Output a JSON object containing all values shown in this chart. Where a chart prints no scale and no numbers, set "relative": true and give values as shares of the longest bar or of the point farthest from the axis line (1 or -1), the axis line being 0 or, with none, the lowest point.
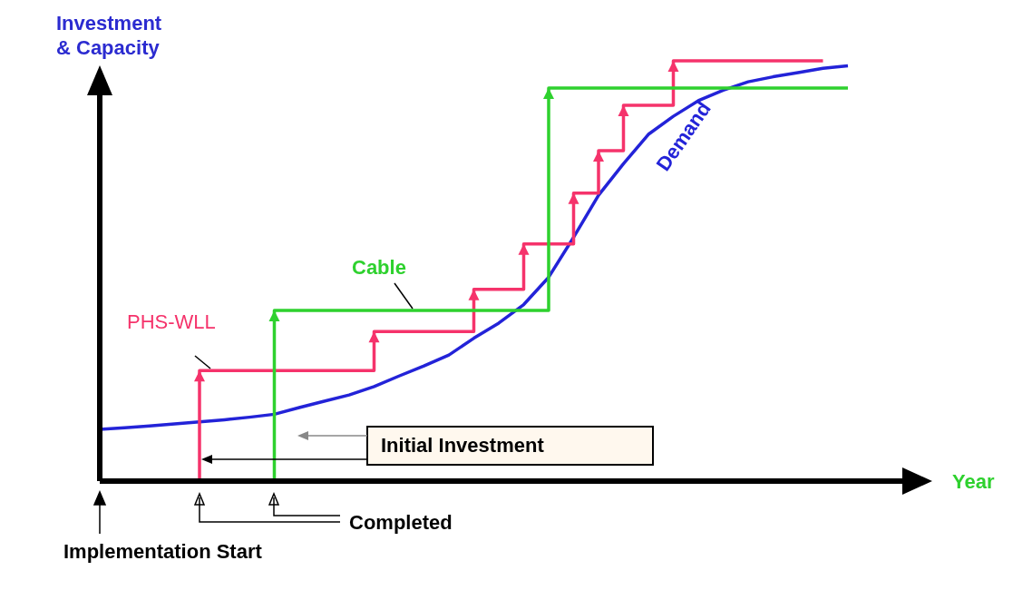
{
  "chart_data": {
    "type": "step",
    "relative": true,
    "ylabel": "Investment & Capacity",
    "xlabel": "Year",
    "legend": false,
    "grid": false,
    "categories": [
      null,
      null,
      null,
      null,
      null,
      null,
      null,
      null,
      null,
      null,
      null,
      null,
      null,
      null,
      null,
      null,
      null,
      null,
      null,
      null,
      null,
      null,
      null,
      null,
      null,
      null,
      null,
      null,
      null,
      null,
      null,
      null,
      null,
      null
    ],
    "series": [
      {
        "name": "Demand",
        "type": "line",
        "color": "#2323d8",
        "values": [
          0.123,
          0.127,
          0.131,
          0.136,
          0.141,
          0.146,
          0.152,
          0.159,
          0.175,
          0.19,
          0.205,
          0.225,
          0.25,
          0.274,
          0.3,
          0.34,
          0.376,
          0.42,
          0.485,
          0.58,
          0.68,
          0.755,
          0.825,
          0.868,
          0.905,
          0.93,
          0.95,
          0.962,
          0.972,
          0.982,
          0.988,
          null,
          null,
          null
        ]
      },
      {
        "name": "PHS-WLL",
        "color": "#f5336b",
        "values": [
          null,
          null,
          null,
          0,
          0.263,
          0.263,
          0.263,
          0.263,
          0.263,
          0.263,
          0.263,
          0.356,
          0.356,
          0.356,
          0.356,
          0.456,
          0.456,
          0.564,
          0.564,
          0.685,
          0.786,
          0.894,
          0.894,
          1,
          1,
          1,
          1,
          1,
          1,
          1,
          null,
          null,
          null,
          null
        ]
      },
      {
        "name": "Cable",
        "color": "#2ed12e",
        "values": [
          null,
          null,
          null,
          null,
          null,
          null,
          0,
          0.406,
          0.406,
          0.406,
          0.406,
          0.406,
          0.406,
          0.406,
          0.406,
          0.406,
          0.406,
          0.406,
          0.935,
          0.935,
          0.935,
          0.935,
          0.935,
          0.935,
          0.935,
          0.935,
          0.935,
          0.935,
          0.935,
          0.935,
          0.935,
          null,
          null,
          null
        ]
      }
    ],
    "annotations": [
      "Initial Investment",
      "Completed",
      "Implementation Start"
    ]
  }
}
